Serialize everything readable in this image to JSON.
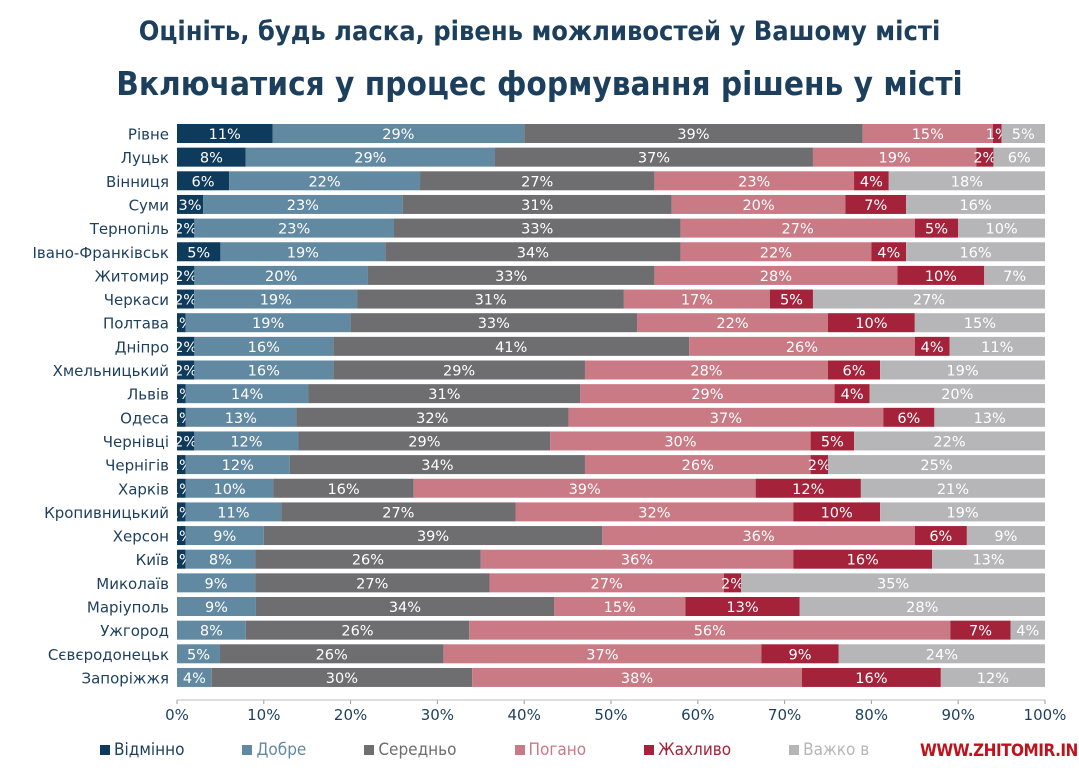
{
  "chart_data": {
    "type": "bar",
    "orientation": "horizontal-stacked-100",
    "title": "Оцініть, будь ласка, рівень можливостей у Вашому місті",
    "subtitle": "Включатися у процес формування рішень у місті",
    "xlim": [
      0,
      100
    ],
    "x_ticks": [
      "0%",
      "10%",
      "20%",
      "30%",
      "40%",
      "50%",
      "60%",
      "70%",
      "80%",
      "90%",
      "100%"
    ],
    "legend_position": "bottom",
    "categories": [
      "Рівне",
      "Луцьк",
      "Вінниця",
      "Суми",
      "Тернопіль",
      "Івано-Франківськ",
      "Житомир",
      "Черкаси",
      "Полтава",
      "Дніпро",
      "Хмельницький",
      "Львів",
      "Одеса",
      "Чернівці",
      "Чернігів",
      "Харків",
      "Кропивницький",
      "Херсон",
      "Київ",
      "Миколаїв",
      "Маріуполь",
      "Ужгород",
      "Сєвєродонецьк",
      "Запоріжжя"
    ],
    "series": [
      {
        "name": "Відмінно",
        "color": "#0e3a5c",
        "text_color": "#ffffff",
        "values": [
          11,
          8,
          6,
          3,
          2,
          5,
          2,
          2,
          1,
          2,
          2,
          1,
          1,
          2,
          1,
          1,
          1,
          1,
          1,
          0,
          0,
          0,
          0,
          0
        ]
      },
      {
        "name": "Добре",
        "color": "#6289a2",
        "text_color": "#ffffff",
        "values": [
          29,
          29,
          22,
          23,
          23,
          19,
          20,
          19,
          19,
          16,
          16,
          14,
          13,
          12,
          12,
          10,
          11,
          9,
          8,
          9,
          9,
          8,
          5,
          4
        ]
      },
      {
        "name": "Середньо",
        "color": "#6e6e71",
        "text_color": "#ffffff",
        "values": [
          39,
          37,
          27,
          31,
          33,
          34,
          33,
          31,
          33,
          41,
          29,
          31,
          32,
          29,
          34,
          16,
          27,
          39,
          26,
          27,
          34,
          26,
          26,
          30
        ]
      },
      {
        "name": "Погано",
        "color": "#c97a85",
        "text_color": "#ffffff",
        "values": [
          15,
          19,
          23,
          20,
          27,
          22,
          28,
          17,
          22,
          26,
          28,
          29,
          37,
          30,
          26,
          39,
          32,
          36,
          36,
          27,
          15,
          56,
          37,
          38
        ]
      },
      {
        "name": "Жахливо",
        "color": "#a4233a",
        "text_color": "#ffffff",
        "values": [
          1,
          2,
          4,
          7,
          5,
          4,
          10,
          5,
          10,
          4,
          6,
          4,
          6,
          5,
          2,
          12,
          10,
          6,
          16,
          2,
          13,
          7,
          9,
          16
        ]
      },
      {
        "name": "Важко в",
        "color": "#b6b6b8",
        "text_color": "#ffffff",
        "values": [
          5,
          6,
          18,
          16,
          10,
          16,
          7,
          27,
          15,
          11,
          19,
          20,
          13,
          22,
          25,
          21,
          19,
          9,
          13,
          35,
          28,
          4,
          24,
          12
        ]
      }
    ]
  },
  "watermark": "WWW.ZHITOMIR.INFO"
}
